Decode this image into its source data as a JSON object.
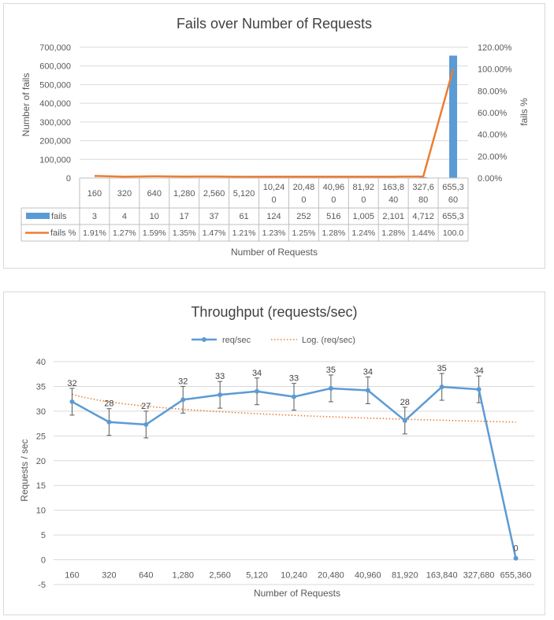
{
  "chart_data": [
    {
      "type": "bar",
      "title": "Fails over Number of Requests",
      "xlabel": "Number of Requests",
      "ylabel": "Number of fails",
      "y2label": "fails %",
      "ylim": [
        0,
        700000
      ],
      "y2lim": [
        0,
        1.2
      ],
      "yticks": [
        "0",
        "100,000",
        "200,000",
        "300,000",
        "400,000",
        "500,000",
        "600,000",
        "700,000"
      ],
      "y2ticks": [
        "0.00%",
        "20.00%",
        "40.00%",
        "60.00%",
        "80.00%",
        "100.00%",
        "120.00%"
      ],
      "categories": [
        "160",
        "320",
        "640",
        "1,280",
        "2,560",
        "5,120",
        "10,240",
        "20,480",
        "40,960",
        "81,920",
        "163,840",
        "327,680",
        "655,360"
      ],
      "category_display": [
        [
          "160"
        ],
        [
          "320"
        ],
        [
          "640"
        ],
        [
          "1,280"
        ],
        [
          "2,560"
        ],
        [
          "5,120"
        ],
        [
          "10,24",
          "0"
        ],
        [
          "20,48",
          "0"
        ],
        [
          "40,96",
          "0"
        ],
        [
          "81,92",
          "0"
        ],
        [
          "163,8",
          "40"
        ],
        [
          "327,6",
          "80"
        ],
        [
          "655,3",
          "60"
        ]
      ],
      "series": [
        {
          "name": "fails",
          "kind": "bar",
          "axis": "left",
          "color": "#5b9bd5",
          "values": [
            3,
            4,
            10,
            17,
            37,
            61,
            124,
            252,
            516,
            1005,
            2101,
            4712,
            655360
          ],
          "labels": [
            "3",
            "4",
            "10",
            "17",
            "37",
            "61",
            "124",
            "252",
            "516",
            "1,005",
            "2,101",
            "4,712",
            "655,3"
          ]
        },
        {
          "name": "fails %",
          "kind": "line",
          "axis": "right",
          "color": "#ed7d31",
          "values": [
            0.0191,
            0.0127,
            0.0159,
            0.0135,
            0.0147,
            0.0121,
            0.0123,
            0.0125,
            0.0128,
            0.0124,
            0.0128,
            0.0144,
            1.0
          ],
          "labels": [
            "1.91%",
            "1.27%",
            "1.59%",
            "1.35%",
            "1.47%",
            "1.21%",
            "1.23%",
            "1.25%",
            "1.28%",
            "1.24%",
            "1.28%",
            "1.44%",
            "100.0"
          ]
        }
      ]
    },
    {
      "type": "line",
      "title": "Throughput (requests/sec)",
      "xlabel": "Number of Requests",
      "ylabel": "Requests / sec",
      "ylim": [
        -5,
        40
      ],
      "yticks": [
        -5,
        0,
        5,
        10,
        15,
        20,
        25,
        30,
        35,
        40
      ],
      "categories": [
        "160",
        "320",
        "640",
        "1,280",
        "2,560",
        "5,120",
        "10,240",
        "20,480",
        "40,960",
        "81,920",
        "163,840",
        "327,680",
        "655,360"
      ],
      "legend": "top",
      "series": [
        {
          "name": "req/sec",
          "color": "#5b9bd5",
          "values": [
            31.9,
            27.8,
            27.3,
            32.3,
            33.3,
            34.0,
            32.9,
            34.6,
            34.2,
            28.1,
            34.9,
            34.4,
            0.3
          ],
          "labels": [
            "32",
            "28",
            "27",
            "32",
            "33",
            "34",
            "33",
            "35",
            "34",
            "28",
            "35",
            "34",
            "0"
          ],
          "error": 2.7
        },
        {
          "name": "Log. (req/sec)",
          "color": "#ed7d31",
          "style": "dotted",
          "trendline": "logarithmic",
          "endpoints": [
            33.4,
            27.8
          ]
        }
      ]
    }
  ]
}
